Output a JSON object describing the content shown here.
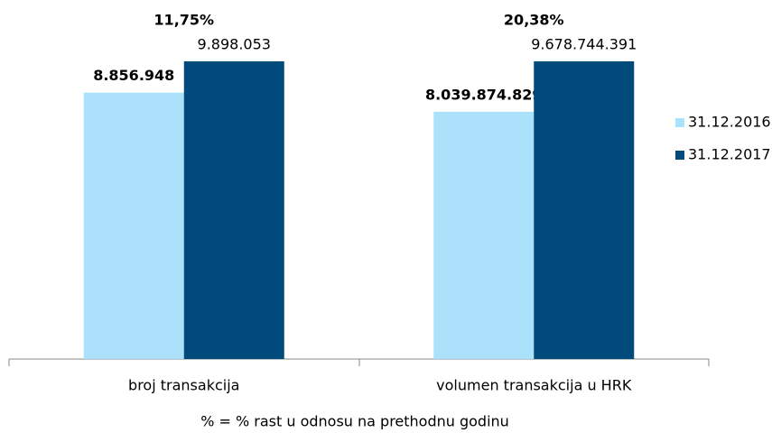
{
  "chart_data": {
    "type": "bar",
    "categories": [
      "broj transakcija",
      "volumen transakcija u HRK"
    ],
    "series": [
      {
        "name": "31.12.2016.",
        "color": "#abe1fa",
        "values": [
          8856948,
          8039874829
        ],
        "value_labels": [
          "8.856.948",
          "8.039.874.829"
        ]
      },
      {
        "name": "31.12.2017.",
        "color": "#004a7c",
        "values": [
          9898053,
          9678744391
        ],
        "value_labels": [
          "9.898.053",
          "9.678.744.391"
        ]
      }
    ],
    "annotations": [
      {
        "value": 11.75,
        "label": "11,75%"
      },
      {
        "value": 20.38,
        "label": "20,38%"
      }
    ],
    "note": "% = % rast u odnosu na prethodnu godinu",
    "legend": "right"
  }
}
